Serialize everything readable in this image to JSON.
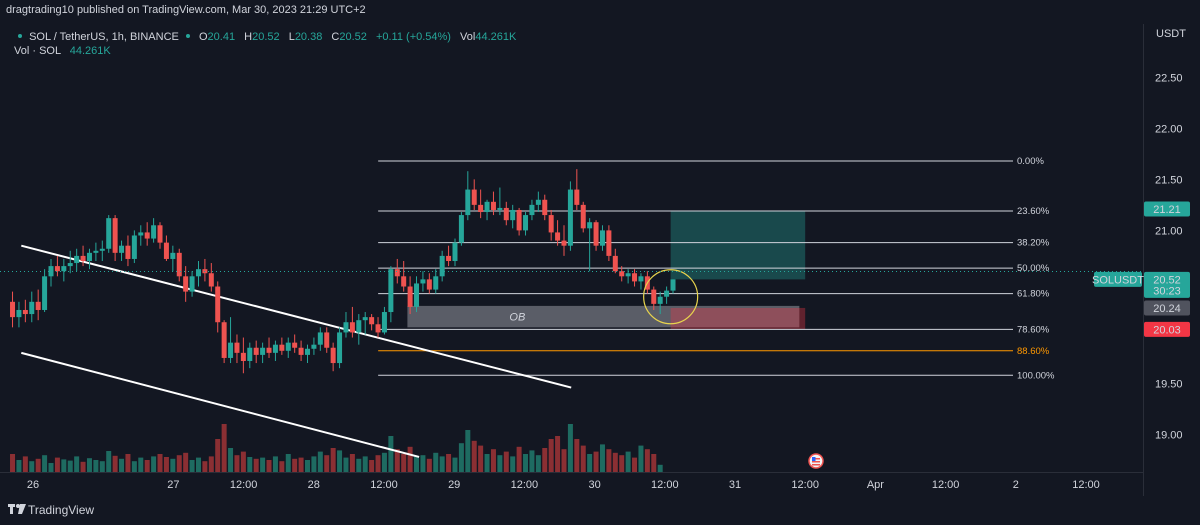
{
  "header": {
    "published_by": "dragtrading10 published on TradingView.com, Mar 30, 2023 21:29 UTC+2"
  },
  "legend": {
    "symbol": "SOL / TetherUS, 1h, BINANCE",
    "ohlc": [
      {
        "key": "O",
        "value": "20.41"
      },
      {
        "key": "H",
        "value": "20.52"
      },
      {
        "key": "L",
        "value": "20.38"
      },
      {
        "key": "C",
        "value": "20.52"
      }
    ],
    "change": "+0.11 (+0.54%)",
    "vol_label": "Vol",
    "vol_value": "44.261K",
    "vol_series_label": "Vol · SOL",
    "vol_series_value": "44.261K"
  },
  "footer": {
    "brand": "TradingView"
  },
  "colors": {
    "background": "#131722",
    "up": "#26a69a",
    "down": "#ef5350",
    "volume_up": "#1e6b61",
    "volume_down": "#8b2f33",
    "fib_orange": "#ff9800",
    "ob_zone": "#9598a1",
    "target_zone": "#26a69a",
    "stop_zone": "#f23645",
    "circle": "#e8d44d"
  },
  "chart_data": {
    "type": "candlestick",
    "currency": "USDT",
    "ylim": [
      18.75,
      22.65
    ],
    "y_ticks": [
      "22.50",
      "22.00",
      "21.50",
      "21.00",
      "19.50",
      "19.00"
    ],
    "x_ticks": [
      "26",
      "27",
      "12:00",
      "28",
      "12:00",
      "29",
      "12:00",
      "30",
      "12:00",
      "31",
      "12:00",
      "Apr",
      "12:00",
      "2",
      "12:00"
    ],
    "x_tick_hours": [
      0,
      24,
      36,
      48,
      60,
      72,
      84,
      96,
      108,
      120,
      132,
      144,
      156,
      168,
      180
    ],
    "candles_ohlc": [
      [
        20.3,
        20.4,
        20.05,
        20.15
      ],
      [
        20.15,
        20.3,
        20.05,
        20.22
      ],
      [
        20.22,
        20.32,
        20.1,
        20.18
      ],
      [
        20.18,
        20.4,
        20.1,
        20.3
      ],
      [
        20.3,
        20.42,
        20.12,
        20.22
      ],
      [
        20.22,
        20.62,
        20.2,
        20.55
      ],
      [
        20.55,
        20.72,
        20.45,
        20.65
      ],
      [
        20.65,
        20.75,
        20.55,
        20.6
      ],
      [
        20.6,
        20.72,
        20.5,
        20.65
      ],
      [
        20.65,
        20.8,
        20.58,
        20.68
      ],
      [
        20.68,
        20.82,
        20.6,
        20.75
      ],
      [
        20.75,
        20.85,
        20.65,
        20.7
      ],
      [
        20.7,
        20.82,
        20.62,
        20.78
      ],
      [
        20.78,
        20.88,
        20.7,
        20.8
      ],
      [
        20.8,
        20.9,
        20.7,
        20.82
      ],
      [
        20.82,
        21.15,
        20.78,
        21.12
      ],
      [
        21.12,
        21.15,
        20.7,
        20.78
      ],
      [
        20.78,
        20.9,
        20.7,
        20.85
      ],
      [
        20.85,
        20.95,
        20.65,
        20.72
      ],
      [
        20.72,
        21.0,
        20.68,
        20.95
      ],
      [
        20.95,
        21.05,
        20.85,
        20.98
      ],
      [
        20.98,
        21.08,
        20.85,
        20.92
      ],
      [
        20.92,
        21.12,
        20.88,
        21.05
      ],
      [
        21.05,
        21.08,
        20.82,
        20.88
      ],
      [
        20.88,
        20.95,
        20.7,
        20.72
      ],
      [
        20.72,
        20.85,
        20.6,
        20.78
      ],
      [
        20.78,
        20.82,
        20.5,
        20.55
      ],
      [
        20.55,
        20.65,
        20.3,
        20.4
      ],
      [
        20.4,
        20.6,
        20.35,
        20.55
      ],
      [
        20.55,
        20.7,
        20.45,
        20.62
      ],
      [
        20.62,
        20.72,
        20.5,
        20.58
      ],
      [
        20.58,
        20.68,
        20.4,
        20.45
      ],
      [
        20.45,
        20.5,
        20.0,
        20.1
      ],
      [
        20.1,
        20.12,
        19.7,
        19.75
      ],
      [
        19.75,
        20.15,
        19.7,
        19.9
      ],
      [
        19.9,
        19.98,
        19.7,
        19.8
      ],
      [
        19.8,
        19.95,
        19.6,
        19.72
      ],
      [
        19.72,
        19.9,
        19.65,
        19.85
      ],
      [
        19.85,
        19.92,
        19.7,
        19.78
      ],
      [
        19.78,
        19.9,
        19.7,
        19.85
      ],
      [
        19.85,
        19.95,
        19.75,
        19.8
      ],
      [
        19.8,
        19.92,
        19.72,
        19.88
      ],
      [
        19.88,
        19.95,
        19.78,
        19.82
      ],
      [
        19.82,
        19.95,
        19.75,
        19.9
      ],
      [
        19.9,
        19.98,
        19.8,
        19.85
      ],
      [
        19.85,
        19.92,
        19.72,
        19.78
      ],
      [
        19.78,
        19.88,
        19.7,
        19.84
      ],
      [
        19.84,
        19.95,
        19.78,
        19.88
      ],
      [
        19.88,
        20.05,
        19.82,
        20.0
      ],
      [
        20.0,
        20.05,
        19.8,
        19.85
      ],
      [
        19.85,
        19.9,
        19.62,
        19.7
      ],
      [
        19.7,
        20.05,
        19.65,
        20.0
      ],
      [
        20.0,
        20.2,
        19.95,
        20.1
      ],
      [
        20.1,
        20.25,
        19.95,
        20.0
      ],
      [
        20.0,
        20.18,
        19.88,
        20.12
      ],
      [
        20.12,
        20.2,
        19.98,
        20.15
      ],
      [
        20.15,
        20.18,
        20.02,
        20.08
      ],
      [
        20.08,
        20.15,
        19.95,
        20.0
      ],
      [
        20.0,
        20.25,
        19.98,
        20.2
      ],
      [
        20.2,
        20.65,
        20.1,
        20.62
      ],
      [
        20.62,
        20.72,
        20.48,
        20.55
      ],
      [
        20.55,
        20.7,
        20.4,
        20.45
      ],
      [
        20.45,
        20.55,
        20.18,
        20.25
      ],
      [
        20.25,
        20.55,
        20.2,
        20.48
      ],
      [
        20.48,
        20.6,
        20.4,
        20.52
      ],
      [
        20.52,
        20.58,
        20.38,
        20.42
      ],
      [
        20.42,
        20.62,
        20.38,
        20.55
      ],
      [
        20.55,
        20.8,
        20.5,
        20.75
      ],
      [
        20.75,
        20.85,
        20.65,
        20.7
      ],
      [
        20.7,
        20.92,
        20.65,
        20.88
      ],
      [
        20.88,
        21.18,
        20.85,
        21.15
      ],
      [
        21.15,
        21.58,
        21.1,
        21.4
      ],
      [
        21.4,
        21.5,
        21.2,
        21.25
      ],
      [
        21.25,
        21.4,
        21.12,
        21.18
      ],
      [
        21.18,
        21.3,
        21.1,
        21.28
      ],
      [
        21.28,
        21.38,
        21.15,
        21.2
      ],
      [
        21.2,
        21.42,
        21.15,
        21.22
      ],
      [
        21.22,
        21.28,
        21.05,
        21.1
      ],
      [
        21.1,
        21.25,
        21.02,
        21.2
      ],
      [
        21.2,
        21.22,
        20.95,
        21.0
      ],
      [
        21.0,
        21.18,
        20.95,
        21.15
      ],
      [
        21.15,
        21.3,
        21.1,
        21.25
      ],
      [
        21.25,
        21.38,
        21.18,
        21.3
      ],
      [
        21.3,
        21.35,
        21.1,
        21.15
      ],
      [
        21.15,
        21.2,
        20.9,
        20.98
      ],
      [
        20.98,
        21.1,
        20.85,
        20.9
      ],
      [
        20.9,
        21.05,
        20.75,
        20.85
      ],
      [
        20.85,
        21.48,
        20.8,
        21.4
      ],
      [
        21.4,
        21.6,
        21.2,
        21.25
      ],
      [
        21.25,
        21.28,
        20.98,
        21.02
      ],
      [
        21.02,
        21.12,
        20.6,
        21.08
      ],
      [
        21.08,
        21.1,
        20.8,
        20.85
      ],
      [
        20.85,
        21.05,
        20.8,
        21.0
      ],
      [
        21.0,
        21.05,
        20.7,
        20.75
      ],
      [
        20.75,
        20.82,
        20.58,
        20.6
      ],
      [
        20.6,
        20.65,
        20.5,
        20.55
      ],
      [
        20.55,
        20.62,
        20.48,
        20.58
      ],
      [
        20.58,
        20.62,
        20.45,
        20.5
      ],
      [
        20.5,
        20.58,
        20.42,
        20.55
      ],
      [
        20.55,
        20.6,
        20.38,
        20.42
      ],
      [
        20.42,
        20.45,
        20.22,
        20.28
      ],
      [
        20.28,
        20.4,
        20.18,
        20.35
      ],
      [
        20.35,
        20.45,
        20.28,
        20.41
      ],
      [
        20.41,
        20.52,
        20.38,
        20.52
      ]
    ],
    "volumes": [
      30,
      20,
      26,
      18,
      22,
      28,
      15,
      24,
      21,
      19,
      26,
      17,
      23,
      20,
      18,
      35,
      27,
      22,
      30,
      18,
      24,
      20,
      26,
      30,
      25,
      22,
      28,
      32,
      20,
      24,
      18,
      26,
      55,
      80,
      40,
      28,
      34,
      25,
      22,
      24,
      20,
      26,
      18,
      30,
      22,
      24,
      20,
      26,
      34,
      28,
      40,
      36,
      24,
      30,
      22,
      26,
      20,
      28,
      32,
      60,
      38,
      30,
      42,
      26,
      28,
      22,
      32,
      26,
      30,
      24,
      48,
      70,
      52,
      44,
      30,
      38,
      28,
      34,
      26,
      42,
      30,
      36,
      28,
      40,
      55,
      60,
      38,
      80,
      55,
      44,
      30,
      34,
      46,
      38,
      32,
      28,
      34,
      24,
      44,
      38,
      30,
      12
    ],
    "volume_max": 100,
    "annotations": [
      {
        "type": "trendline",
        "from": {
          "hour": -2,
          "price": 20.85
        },
        "to": {
          "hour": 92,
          "price": 19.46
        }
      },
      {
        "type": "trendline",
        "from": {
          "hour": -2,
          "price": 19.8
        },
        "to": {
          "hour": 66,
          "price": 18.78
        }
      }
    ],
    "fibonacci": {
      "from_hour": 59,
      "to_hour": 168,
      "levels": [
        {
          "label": "0.00%",
          "price": 21.68
        },
        {
          "label": "23.60%",
          "price": 21.19
        },
        {
          "label": "38.20%",
          "price": 20.88
        },
        {
          "label": "50.00%",
          "price": 20.63
        },
        {
          "label": "61.80%",
          "price": 20.38
        },
        {
          "label": "78.60%",
          "price": 20.03
        },
        {
          "label": "88.60%",
          "price": 19.82
        },
        {
          "label": "100.00%",
          "price": 19.58
        }
      ]
    },
    "zones": [
      {
        "label": "OB",
        "type": "order_block",
        "from_hour": 64,
        "to_hour": 131,
        "top": 20.26,
        "bottom": 20.05
      },
      {
        "type": "target",
        "from_hour": 109,
        "to_hour": 132,
        "top": 21.19,
        "bottom": 20.52
      },
      {
        "type": "stop",
        "from_hour": 109,
        "to_hour": 132,
        "top": 20.24,
        "bottom": 20.03
      }
    ],
    "highlight_circle": {
      "hour": 109,
      "price": 20.35
    },
    "price_labels": [
      {
        "text": "21.21",
        "price": 21.21,
        "style": "up"
      },
      {
        "text": "20.52",
        "price": 20.52,
        "style": "up",
        "symbol": "SOLUSDT",
        "countdown": "30:23"
      },
      {
        "text": "20.24",
        "price": 20.24,
        "style": "gray"
      },
      {
        "text": "20.03",
        "price": 20.03,
        "style": "down"
      }
    ]
  }
}
